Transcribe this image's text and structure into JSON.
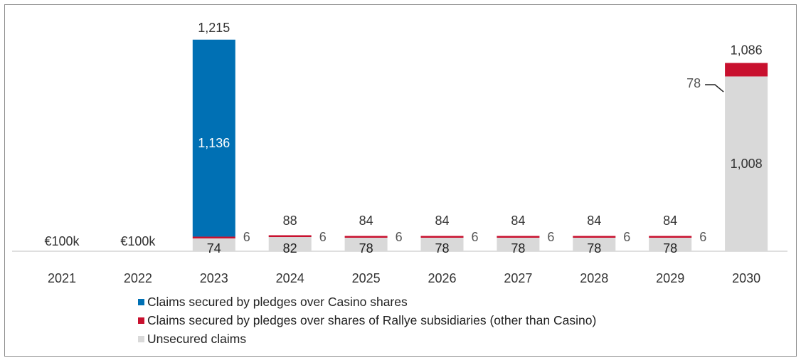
{
  "chart_data": {
    "type": "bar",
    "stacked": true,
    "categories": [
      "2021",
      "2022",
      "2023",
      "2024",
      "2025",
      "2026",
      "2027",
      "2028",
      "2029",
      "2030"
    ],
    "series": [
      {
        "name": "Unsecured claims",
        "color": "#d9d9d9",
        "values": [
          0,
          0,
          74,
          82,
          78,
          78,
          78,
          78,
          78,
          1008
        ]
      },
      {
        "name": "Claims secured by pledges over shares of Rallye subsidiaries (other than Casino)",
        "color": "#c8102e",
        "values": [
          0,
          0,
          6,
          6,
          6,
          6,
          6,
          6,
          6,
          78
        ]
      },
      {
        "name": "Claims secured by pledges over Casino shares",
        "color": "#0070b4",
        "values": [
          0,
          0,
          1136,
          0,
          0,
          0,
          0,
          0,
          0,
          0
        ]
      }
    ],
    "bar_labels": [
      {
        "segment": "",
        "total": "€100k",
        "secured": ""
      },
      {
        "segment": "",
        "total": "€100k",
        "secured": ""
      },
      {
        "segment": "74",
        "total": "1,215",
        "secured": "6",
        "casino": "1,136"
      },
      {
        "segment": "82",
        "total": "88",
        "secured": "6"
      },
      {
        "segment": "78",
        "total": "84",
        "secured": "6"
      },
      {
        "segment": "78",
        "total": "84",
        "secured": "6"
      },
      {
        "segment": "78",
        "total": "84",
        "secured": "6"
      },
      {
        "segment": "78",
        "total": "84",
        "secured": "6"
      },
      {
        "segment": "78",
        "total": "84",
        "secured": "6"
      },
      {
        "segment": "1,008",
        "total": "1,086",
        "secured": "78"
      }
    ],
    "legend": [
      {
        "label": "Claims secured by pledges over Casino shares",
        "color": "#0070b4"
      },
      {
        "label": "Claims secured by pledges over shares of Rallye subsidiaries (other than Casino)",
        "color": "#c8102e"
      },
      {
        "label": "Unsecured claims",
        "color": "#d9d9d9"
      }
    ],
    "ylim": [
      0,
      1215
    ],
    "grid": false,
    "legend_position": "bottom-left"
  }
}
